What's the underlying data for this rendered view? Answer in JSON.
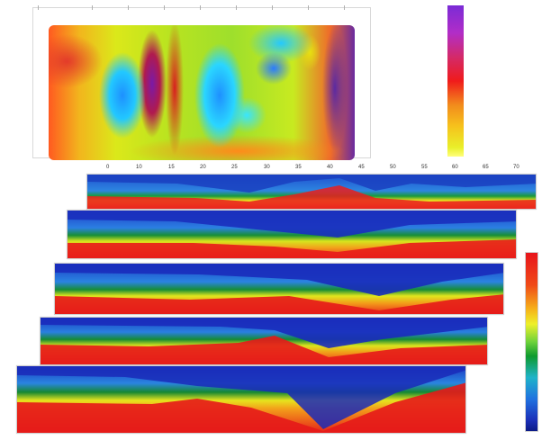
{
  "plan_view": {
    "scale_bar": {
      "colors": [
        "#7a2bd6",
        "#f01b1b",
        "#f6c21c",
        "#ffff7a"
      ]
    }
  },
  "depth_scale": {
    "colors": [
      "#e8141b",
      "#eef02a",
      "#0f9a2e",
      "#2072e0",
      "#0c1a86"
    ]
  },
  "top_axis": {
    "ticks": [
      "0",
      "10",
      "15",
      "20",
      "25",
      "30",
      "35",
      "40",
      "45",
      "50",
      "55",
      "60",
      "65",
      "70"
    ]
  }
}
